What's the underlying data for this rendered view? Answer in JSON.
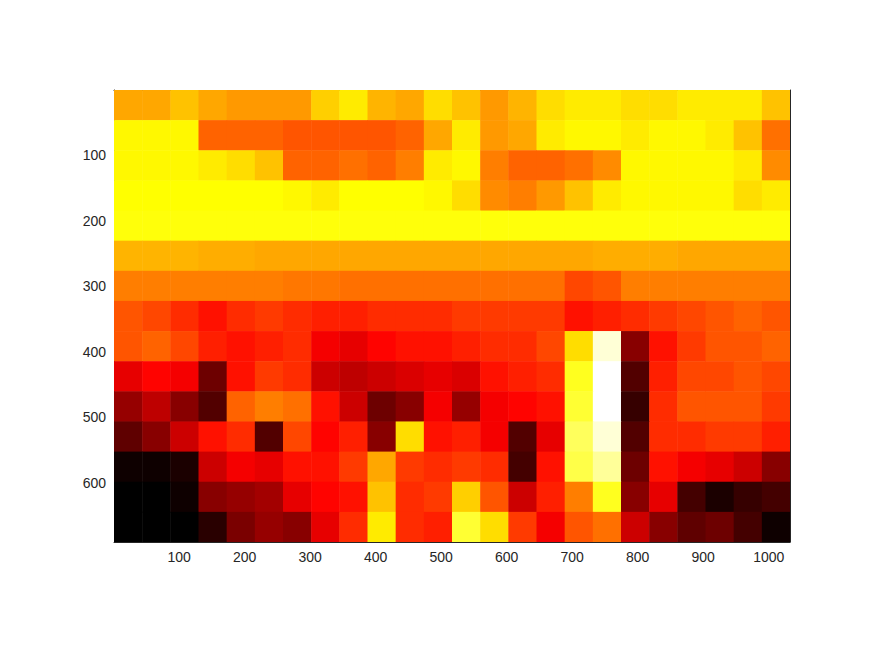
{
  "chart_data": {
    "type": "heatmap",
    "xlim": [
      0.5,
      1032.5
    ],
    "ylim": [
      0.5,
      690.5
    ],
    "xticks": [
      100,
      200,
      300,
      400,
      500,
      600,
      700,
      800,
      900,
      1000
    ],
    "yticks": [
      100,
      200,
      300,
      400,
      500,
      600
    ],
    "x_edges": [
      0.5,
      43.5,
      86.5,
      129.5,
      172.5,
      215.5,
      258.5,
      301.5,
      344.5,
      387.5,
      430.5,
      473.5,
      516.5,
      559.5,
      602.5,
      645.5,
      688.5,
      731.5,
      774.5,
      817.5,
      860.5,
      903.5,
      946.5,
      989.5,
      1032.5
    ],
    "y_edges": [
      0.5,
      46.5,
      92.5,
      138.5,
      184.5,
      230.5,
      276.5,
      322.5,
      368.5,
      414.5,
      460.5,
      506.5,
      552.5,
      598.5,
      644.5,
      690.5
    ],
    "color_range": [
      0,
      1
    ],
    "cells": [
      [
        0.62,
        0.62,
        0.66,
        0.62,
        0.6,
        0.6,
        0.6,
        0.68,
        0.72,
        0.64,
        0.62,
        0.7,
        0.66,
        0.6,
        0.64,
        0.7,
        0.72,
        0.72,
        0.7,
        0.7,
        0.72,
        0.72,
        0.72,
        0.66
      ],
      [
        0.74,
        0.74,
        0.74,
        0.52,
        0.52,
        0.52,
        0.5,
        0.5,
        0.5,
        0.5,
        0.52,
        0.62,
        0.72,
        0.6,
        0.62,
        0.72,
        0.74,
        0.74,
        0.72,
        0.74,
        0.74,
        0.72,
        0.66,
        0.54
      ],
      [
        0.74,
        0.74,
        0.74,
        0.72,
        0.7,
        0.66,
        0.52,
        0.52,
        0.54,
        0.52,
        0.56,
        0.72,
        0.74,
        0.56,
        0.52,
        0.52,
        0.54,
        0.58,
        0.74,
        0.74,
        0.74,
        0.74,
        0.72,
        0.58
      ],
      [
        0.75,
        0.75,
        0.75,
        0.75,
        0.75,
        0.75,
        0.74,
        0.72,
        0.75,
        0.75,
        0.75,
        0.74,
        0.7,
        0.58,
        0.56,
        0.6,
        0.66,
        0.72,
        0.74,
        0.74,
        0.74,
        0.74,
        0.7,
        0.72
      ],
      [
        0.76,
        0.76,
        0.76,
        0.76,
        0.76,
        0.76,
        0.76,
        0.76,
        0.76,
        0.76,
        0.76,
        0.76,
        0.76,
        0.76,
        0.76,
        0.76,
        0.76,
        0.76,
        0.76,
        0.76,
        0.76,
        0.76,
        0.76,
        0.76
      ],
      [
        0.64,
        0.64,
        0.64,
        0.63,
        0.63,
        0.62,
        0.62,
        0.62,
        0.62,
        0.62,
        0.62,
        0.62,
        0.62,
        0.62,
        0.62,
        0.62,
        0.62,
        0.63,
        0.63,
        0.63,
        0.62,
        0.62,
        0.62,
        0.62
      ],
      [
        0.56,
        0.56,
        0.56,
        0.56,
        0.56,
        0.56,
        0.55,
        0.55,
        0.54,
        0.54,
        0.54,
        0.54,
        0.54,
        0.54,
        0.54,
        0.54,
        0.48,
        0.5,
        0.56,
        0.56,
        0.56,
        0.56,
        0.56,
        0.56
      ],
      [
        0.5,
        0.48,
        0.44,
        0.4,
        0.44,
        0.46,
        0.44,
        0.42,
        0.42,
        0.44,
        0.44,
        0.44,
        0.46,
        0.46,
        0.46,
        0.46,
        0.4,
        0.42,
        0.44,
        0.46,
        0.48,
        0.5,
        0.52,
        0.5
      ],
      [
        0.5,
        0.52,
        0.48,
        0.42,
        0.4,
        0.42,
        0.44,
        0.36,
        0.34,
        0.38,
        0.4,
        0.4,
        0.42,
        0.44,
        0.44,
        0.48,
        0.7,
        0.96,
        0.2,
        0.4,
        0.46,
        0.5,
        0.5,
        0.52
      ],
      [
        0.34,
        0.38,
        0.36,
        0.16,
        0.4,
        0.46,
        0.44,
        0.3,
        0.28,
        0.3,
        0.32,
        0.34,
        0.32,
        0.4,
        0.42,
        0.44,
        0.78,
        1.0,
        0.12,
        0.42,
        0.48,
        0.48,
        0.5,
        0.48
      ],
      [
        0.22,
        0.28,
        0.2,
        0.12,
        0.52,
        0.56,
        0.54,
        0.4,
        0.3,
        0.16,
        0.2,
        0.36,
        0.22,
        0.36,
        0.38,
        0.4,
        0.8,
        1.0,
        0.08,
        0.44,
        0.5,
        0.5,
        0.5,
        0.46
      ],
      [
        0.14,
        0.2,
        0.3,
        0.4,
        0.44,
        0.12,
        0.48,
        0.38,
        0.42,
        0.2,
        0.7,
        0.4,
        0.42,
        0.36,
        0.12,
        0.34,
        0.84,
        0.96,
        0.12,
        0.44,
        0.44,
        0.46,
        0.46,
        0.42
      ],
      [
        0.02,
        0.02,
        0.04,
        0.3,
        0.36,
        0.34,
        0.4,
        0.4,
        0.46,
        0.62,
        0.46,
        0.44,
        0.46,
        0.44,
        0.1,
        0.4,
        0.82,
        0.9,
        0.16,
        0.4,
        0.36,
        0.34,
        0.3,
        0.2
      ],
      [
        0.0,
        0.0,
        0.02,
        0.2,
        0.22,
        0.24,
        0.34,
        0.38,
        0.4,
        0.66,
        0.44,
        0.46,
        0.68,
        0.5,
        0.3,
        0.42,
        0.56,
        0.78,
        0.2,
        0.34,
        0.1,
        0.04,
        0.08,
        0.1
      ],
      [
        0.0,
        0.0,
        0.0,
        0.06,
        0.18,
        0.22,
        0.2,
        0.34,
        0.44,
        0.72,
        0.44,
        0.42,
        0.8,
        0.7,
        0.46,
        0.36,
        0.5,
        0.54,
        0.3,
        0.2,
        0.14,
        0.16,
        0.1,
        0.02
      ]
    ]
  }
}
